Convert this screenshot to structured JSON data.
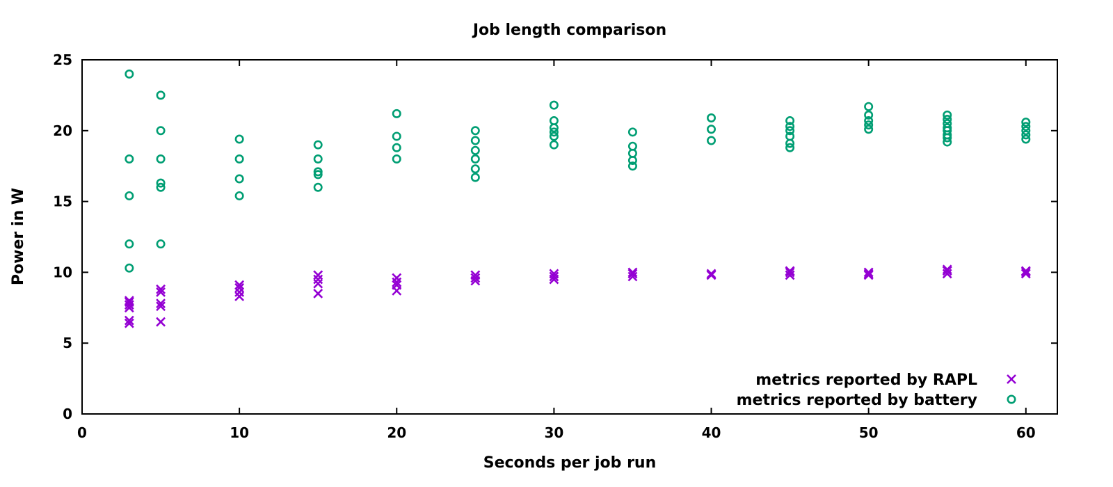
{
  "chart_data": {
    "type": "scatter",
    "title": "Job length comparison",
    "xlabel": "Seconds per job run",
    "ylabel": "Power in W",
    "xlim": [
      0,
      62
    ],
    "ylim": [
      0,
      25
    ],
    "xticks": [
      0,
      10,
      20,
      30,
      40,
      50,
      60
    ],
    "yticks": [
      0,
      5,
      10,
      15,
      20,
      25
    ],
    "grid": false,
    "legend_position": "bottom-right",
    "series": [
      {
        "name": "metrics reported by RAPL",
        "marker": "x",
        "color": "#9400d3",
        "points": [
          [
            3,
            6.4
          ],
          [
            3,
            6.6
          ],
          [
            3,
            7.5
          ],
          [
            3,
            7.7
          ],
          [
            3,
            7.9
          ],
          [
            3,
            8.0
          ],
          [
            5,
            6.5
          ],
          [
            5,
            7.6
          ],
          [
            5,
            7.8
          ],
          [
            5,
            8.6
          ],
          [
            5,
            8.8
          ],
          [
            10,
            8.3
          ],
          [
            10,
            8.6
          ],
          [
            10,
            8.9
          ],
          [
            10,
            9.1
          ],
          [
            15,
            8.5
          ],
          [
            15,
            9.2
          ],
          [
            15,
            9.5
          ],
          [
            15,
            9.8
          ],
          [
            20,
            8.7
          ],
          [
            20,
            9.1
          ],
          [
            20,
            9.3
          ],
          [
            20,
            9.6
          ],
          [
            25,
            9.4
          ],
          [
            25,
            9.6
          ],
          [
            25,
            9.8
          ],
          [
            30,
            9.5
          ],
          [
            30,
            9.7
          ],
          [
            30,
            9.9
          ],
          [
            35,
            9.7
          ],
          [
            35,
            9.9
          ],
          [
            35,
            10.0
          ],
          [
            40,
            9.8
          ],
          [
            40,
            9.9
          ],
          [
            45,
            9.8
          ],
          [
            45,
            10.0
          ],
          [
            45,
            10.1
          ],
          [
            50,
            9.8
          ],
          [
            50,
            9.9
          ],
          [
            50,
            10.0
          ],
          [
            55,
            9.9
          ],
          [
            55,
            10.1
          ],
          [
            55,
            10.2
          ],
          [
            60,
            9.9
          ],
          [
            60,
            10.0
          ],
          [
            60,
            10.1
          ]
        ]
      },
      {
        "name": "metrics reported by battery",
        "marker": "o",
        "color": "#009e73",
        "points": [
          [
            3,
            24.0
          ],
          [
            3,
            18.0
          ],
          [
            3,
            15.4
          ],
          [
            3,
            12.0
          ],
          [
            3,
            10.3
          ],
          [
            5,
            22.5
          ],
          [
            5,
            20.0
          ],
          [
            5,
            18.0
          ],
          [
            5,
            16.3
          ],
          [
            5,
            16.0
          ],
          [
            5,
            12.0
          ],
          [
            10,
            19.4
          ],
          [
            10,
            18.0
          ],
          [
            10,
            16.6
          ],
          [
            10,
            15.4
          ],
          [
            15,
            19.0
          ],
          [
            15,
            18.0
          ],
          [
            15,
            17.1
          ],
          [
            15,
            16.9
          ],
          [
            15,
            16.0
          ],
          [
            20,
            21.2
          ],
          [
            20,
            19.6
          ],
          [
            20,
            18.8
          ],
          [
            20,
            18.0
          ],
          [
            25,
            20.0
          ],
          [
            25,
            19.3
          ],
          [
            25,
            18.6
          ],
          [
            25,
            18.0
          ],
          [
            25,
            17.3
          ],
          [
            25,
            16.7
          ],
          [
            30,
            21.8
          ],
          [
            30,
            20.7
          ],
          [
            30,
            20.2
          ],
          [
            30,
            19.9
          ],
          [
            30,
            19.6
          ],
          [
            30,
            19.0
          ],
          [
            35,
            19.9
          ],
          [
            35,
            18.9
          ],
          [
            35,
            18.4
          ],
          [
            35,
            17.9
          ],
          [
            35,
            17.5
          ],
          [
            40,
            20.9
          ],
          [
            40,
            20.1
          ],
          [
            40,
            19.3
          ],
          [
            45,
            20.7
          ],
          [
            45,
            20.3
          ],
          [
            45,
            20.0
          ],
          [
            45,
            19.6
          ],
          [
            45,
            19.1
          ],
          [
            45,
            18.8
          ],
          [
            50,
            21.7
          ],
          [
            50,
            21.1
          ],
          [
            50,
            20.7
          ],
          [
            50,
            20.4
          ],
          [
            50,
            20.1
          ],
          [
            55,
            21.1
          ],
          [
            55,
            20.8
          ],
          [
            55,
            20.5
          ],
          [
            55,
            20.2
          ],
          [
            55,
            20.0
          ],
          [
            55,
            19.7
          ],
          [
            55,
            19.5
          ],
          [
            55,
            19.2
          ],
          [
            60,
            20.6
          ],
          [
            60,
            20.3
          ],
          [
            60,
            20.0
          ],
          [
            60,
            19.7
          ],
          [
            60,
            19.4
          ]
        ]
      }
    ]
  }
}
